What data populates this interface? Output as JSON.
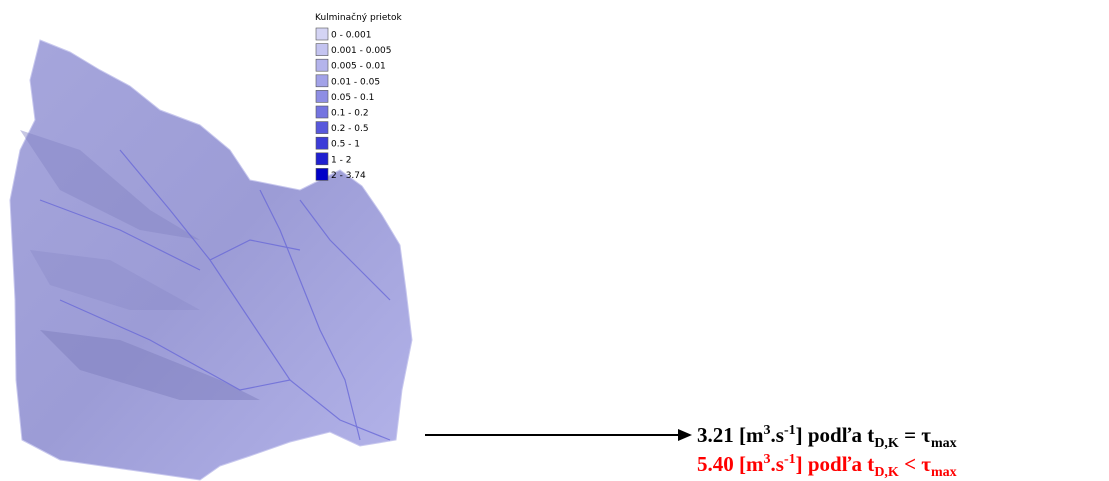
{
  "legend": {
    "title": "Kulminačný prietok",
    "items": [
      {
        "label": "0 - 0.001",
        "color": "#d4d4f4"
      },
      {
        "label": "0.001 - 0.005",
        "color": "#c4c4f0"
      },
      {
        "label": "0.005 - 0.01",
        "color": "#b4b4ec"
      },
      {
        "label": "0.01 - 0.05",
        "color": "#a2a2e8"
      },
      {
        "label": "0.05 - 0.1",
        "color": "#8e8ee4"
      },
      {
        "label": "0.1 - 0.2",
        "color": "#7474e0"
      },
      {
        "label": "0.2 - 0.5",
        "color": "#5858dc"
      },
      {
        "label": "0.5 - 1",
        "color": "#3c3cd8"
      },
      {
        "label": "1 - 2",
        "color": "#2020d0"
      },
      {
        "label": "2 - 3.74",
        "color": "#0000c8"
      }
    ]
  },
  "annotation": {
    "lines": [
      {
        "color": "#000000",
        "parts": [
          {
            "text": "3.21 [m",
            "style": "normal"
          },
          {
            "text": "3",
            "style": "sup"
          },
          {
            "text": ".s",
            "style": "normal"
          },
          {
            "text": "-1",
            "style": "sup"
          },
          {
            "text": "] podľa t",
            "style": "normal"
          },
          {
            "text": "D,K",
            "style": "sub"
          },
          {
            "text": " = τ",
            "style": "normal"
          },
          {
            "text": "max",
            "style": "sub"
          }
        ]
      },
      {
        "color": "#ff0000",
        "parts": [
          {
            "text": "5.40 [m",
            "style": "normal"
          },
          {
            "text": "3",
            "style": "sup"
          },
          {
            "text": ".s",
            "style": "normal"
          },
          {
            "text": "-1",
            "style": "sup"
          },
          {
            "text": "] podľa t",
            "style": "normal"
          },
          {
            "text": "D,K",
            "style": "sub"
          },
          {
            "text": " < τ",
            "style": "normal"
          },
          {
            "text": "max",
            "style": "sub"
          }
        ]
      }
    ]
  }
}
